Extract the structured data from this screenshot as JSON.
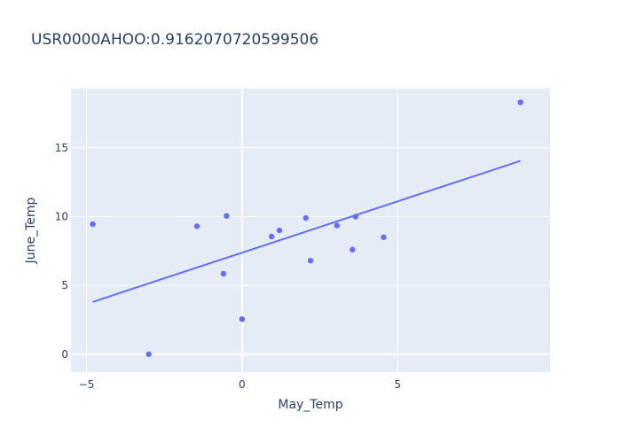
{
  "chart_data": {
    "type": "scatter",
    "title": "USR0000AHOO:0.9162070720599506",
    "xlabel": "May_Temp",
    "ylabel": "June_Temp",
    "xlim": [
      -5.5,
      9.9
    ],
    "ylim": [
      -1.3,
      19.3
    ],
    "x_ticks": [
      -5,
      0,
      5
    ],
    "y_ticks": [
      0,
      5,
      10,
      15
    ],
    "x_tick_labels": [
      "−5",
      "0",
      "5"
    ],
    "y_tick_labels": [
      "0",
      "5",
      "10",
      "15"
    ],
    "grid": true,
    "legend": "none",
    "marker_color": "#636efa",
    "plot_bg": "#e5ecf6",
    "series": [
      {
        "name": "points",
        "x": [
          -4.8,
          -3.0,
          -1.45,
          -0.5,
          -0.6,
          0.0,
          0.95,
          1.2,
          2.05,
          2.2,
          3.05,
          3.55,
          3.65,
          4.55,
          8.95
        ],
        "y": [
          9.45,
          0.0,
          9.3,
          10.05,
          5.85,
          2.55,
          8.55,
          9.0,
          9.9,
          6.8,
          9.35,
          7.6,
          10.0,
          8.5,
          18.3
        ]
      },
      {
        "name": "trendline",
        "x": [
          -4.8,
          8.95
        ],
        "y": [
          3.8,
          14.05
        ]
      }
    ]
  }
}
